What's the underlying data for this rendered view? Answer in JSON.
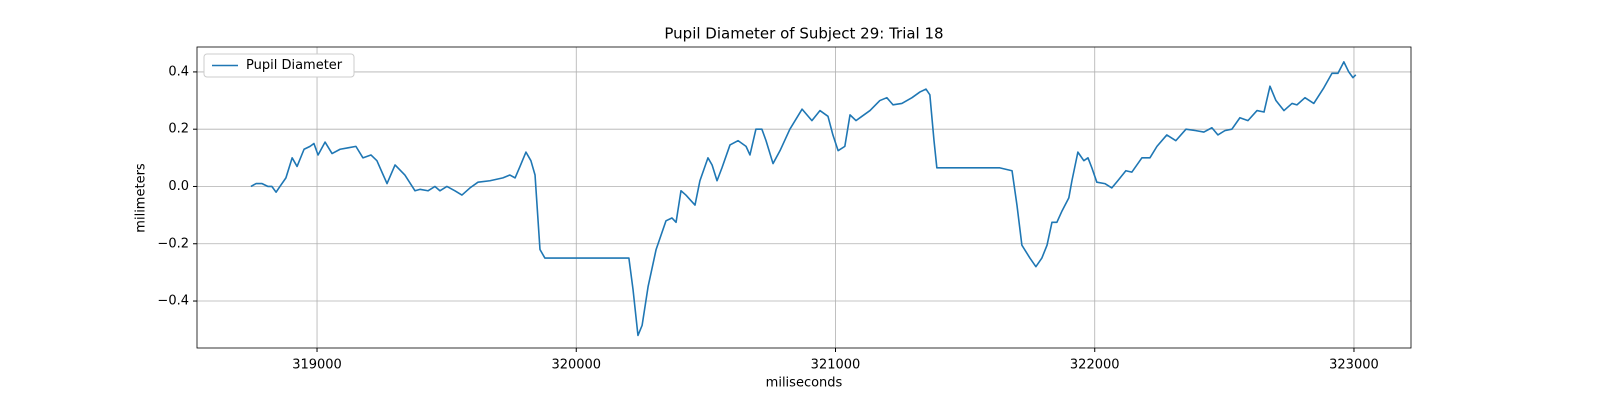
{
  "chart_data": {
    "type": "line",
    "title": "Pupil Diameter of Subject 29: Trial 18",
    "xlabel": "miliseconds",
    "ylabel": "milimeters",
    "x": [
      318745,
      318765,
      318788,
      318811,
      318826,
      318842,
      318857,
      318880,
      318904,
      318923,
      318950,
      318973,
      318988,
      319004,
      319031,
      319058,
      319089,
      319120,
      319150,
      319177,
      319208,
      319231,
      319270,
      319301,
      319339,
      319378,
      319397,
      319428,
      319455,
      319474,
      319501,
      319532,
      319559,
      319590,
      319621,
      319667,
      319717,
      319744,
      319764,
      319783,
      319806,
      319825,
      319841,
      319860,
      319879,
      320092,
      320203,
      320219,
      320238,
      320254,
      320277,
      320308,
      320346,
      320369,
      320385,
      320404,
      320423,
      320443,
      320458,
      320477,
      320508,
      320524,
      320543,
      320562,
      320593,
      320624,
      320655,
      320670,
      320693,
      320716,
      320732,
      320759,
      320786,
      320824,
      320871,
      320909,
      320940,
      320971,
      320990,
      321010,
      321036,
      321056,
      321079,
      321102,
      321133,
      321171,
      321198,
      321222,
      321256,
      321295,
      321326,
      321349,
      321364,
      321380,
      321391,
      321634,
      321681,
      321700,
      321719,
      321750,
      321773,
      321796,
      321816,
      321835,
      321854,
      321874,
      321900,
      321912,
      321935,
      321958,
      321974,
      321989,
      322008,
      322039,
      322066,
      322089,
      322120,
      322143,
      322182,
      322213,
      322240,
      322278,
      322313,
      322352,
      322390,
      322421,
      322452,
      322475,
      322502,
      322529,
      322560,
      322591,
      322626,
      322653,
      322676,
      322699,
      322730,
      322761,
      322780,
      322811,
      322845,
      322884,
      322915,
      322938,
      322961,
      322980,
      322996,
      323007
    ],
    "series": [
      {
        "name": "Pupil Diameter",
        "color": "#1f77b4",
        "values": [
          0,
          0.01,
          0.01,
          0.0,
          0.0,
          -0.02,
          0.0,
          0.03,
          0.1,
          0.07,
          0.13,
          0.14,
          0.15,
          0.11,
          0.155,
          0.115,
          0.13,
          0.135,
          0.14,
          0.1,
          0.11,
          0.09,
          0.01,
          0.075,
          0.04,
          -0.015,
          -0.01,
          -0.015,
          0.0,
          -0.015,
          0.0,
          -0.015,
          -0.03,
          -0.005,
          0.015,
          0.02,
          0.03,
          0.04,
          0.03,
          0.07,
          0.12,
          0.09,
          0.04,
          -0.22,
          -0.25,
          -0.25,
          -0.25,
          -0.36,
          -0.52,
          -0.485,
          -0.35,
          -0.22,
          -0.12,
          -0.11,
          -0.125,
          -0.015,
          -0.03,
          -0.05,
          -0.065,
          0.02,
          0.1,
          0.075,
          0.02,
          0.065,
          0.145,
          0.16,
          0.14,
          0.11,
          0.2,
          0.2,
          0.16,
          0.08,
          0.125,
          0.2,
          0.27,
          0.23,
          0.265,
          0.245,
          0.18,
          0.125,
          0.14,
          0.25,
          0.23,
          0.245,
          0.265,
          0.3,
          0.31,
          0.285,
          0.29,
          0.31,
          0.33,
          0.34,
          0.32,
          0.16,
          0.065,
          0.065,
          0.055,
          -0.065,
          -0.205,
          -0.25,
          -0.28,
          -0.25,
          -0.205,
          -0.125,
          -0.125,
          -0.085,
          -0.04,
          0.02,
          0.12,
          0.09,
          0.1,
          0.065,
          0.015,
          0.01,
          -0.005,
          0.02,
          0.055,
          0.05,
          0.1,
          0.1,
          0.14,
          0.18,
          0.16,
          0.2,
          0.195,
          0.19,
          0.205,
          0.18,
          0.195,
          0.2,
          0.24,
          0.23,
          0.265,
          0.26,
          0.35,
          0.3,
          0.265,
          0.29,
          0.285,
          0.31,
          0.29,
          0.345,
          0.395,
          0.395,
          0.435,
          0.4,
          0.38,
          0.39
        ]
      }
    ],
    "xlim": [
      318537,
      323220
    ],
    "ylim": [
      -0.564,
      0.487
    ],
    "xticks": [
      319000,
      320000,
      321000,
      322000,
      323000
    ],
    "yticks": [
      {
        "value": -0.4,
        "label": "−0.4"
      },
      {
        "value": -0.2,
        "label": "−0.2"
      },
      {
        "value": 0,
        "label": "0.0"
      },
      {
        "value": 0.2,
        "label": "0.2"
      },
      {
        "value": 0.4,
        "label": "0.4"
      }
    ],
    "grid": true,
    "legend": "upper-left"
  }
}
